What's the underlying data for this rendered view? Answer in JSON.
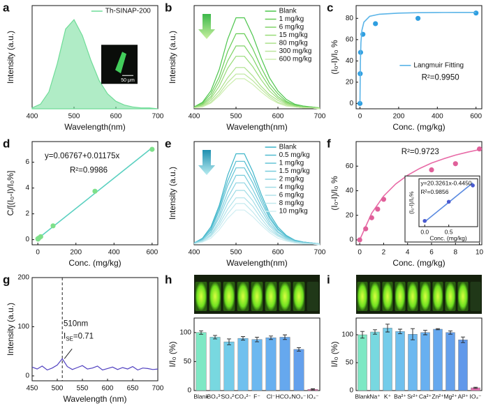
{
  "chart_data": [
    {
      "type": "area",
      "label": "a",
      "xlabel": "Wavelength(nm)",
      "ylabel": "Intensity (a.u.)",
      "xlim": [
        400,
        700
      ],
      "xticks": [
        400,
        500,
        600,
        700
      ],
      "ylim": [
        0,
        1.1
      ],
      "x": [
        400,
        420,
        440,
        460,
        480,
        500,
        520,
        540,
        560,
        580,
        600,
        620,
        640,
        660,
        680,
        700
      ],
      "series": [
        {
          "name": "Th-SINAP-200",
          "color": "#6fdc98",
          "values": [
            0.01,
            0.05,
            0.18,
            0.48,
            0.85,
            0.95,
            0.78,
            0.52,
            0.3,
            0.16,
            0.08,
            0.04,
            0.02,
            0.01,
            0.01,
            0
          ]
        }
      ],
      "legend": "upper right",
      "inset_scale_label": "50 μm"
    },
    {
      "type": "line",
      "label": "b",
      "xlabel": "Wavelength(nm)",
      "ylabel": "Intensity (a.u.)",
      "xlim": [
        400,
        700
      ],
      "xticks": [
        400,
        500,
        600,
        700
      ],
      "ylim": [
        0,
        1.1
      ],
      "x": [
        400,
        420,
        440,
        460,
        480,
        500,
        520,
        540,
        560,
        580,
        600,
        620,
        640,
        660,
        680,
        700
      ],
      "series": [
        {
          "name": "Blank",
          "color": "#4cc54c",
          "values": [
            0.02,
            0.07,
            0.19,
            0.42,
            0.74,
            0.97,
            0.97,
            0.78,
            0.54,
            0.33,
            0.19,
            0.1,
            0.05,
            0.03,
            0.02,
            0.01
          ]
        },
        {
          "name": "1 mg/kg",
          "color": "#66cc55",
          "values": [
            0.02,
            0.06,
            0.16,
            0.34,
            0.61,
            0.8,
            0.8,
            0.64,
            0.44,
            0.27,
            0.16,
            0.08,
            0.04,
            0.02,
            0.02,
            0.01
          ]
        },
        {
          "name": "6 mg/kg",
          "color": "#80d468",
          "values": [
            0.01,
            0.05,
            0.13,
            0.29,
            0.51,
            0.67,
            0.67,
            0.54,
            0.37,
            0.23,
            0.13,
            0.07,
            0.03,
            0.02,
            0.01,
            0.01
          ]
        },
        {
          "name": "15 mg/kg",
          "color": "#98dc78",
          "values": [
            0.01,
            0.04,
            0.11,
            0.24,
            0.43,
            0.56,
            0.56,
            0.45,
            0.31,
            0.19,
            0.11,
            0.06,
            0.03,
            0.02,
            0.01,
            0.01
          ]
        },
        {
          "name": "80 mg/kg",
          "color": "#ace08a",
          "values": [
            0.01,
            0.03,
            0.09,
            0.19,
            0.33,
            0.44,
            0.44,
            0.35,
            0.24,
            0.15,
            0.09,
            0.05,
            0.02,
            0.01,
            0.01,
            0
          ]
        },
        {
          "name": "300 mg/kg",
          "color": "#bce69c",
          "values": [
            0.01,
            0.03,
            0.07,
            0.16,
            0.28,
            0.37,
            0.37,
            0.3,
            0.21,
            0.13,
            0.07,
            0.04,
            0.02,
            0.01,
            0.01,
            0
          ]
        },
        {
          "name": "600 mg/kg",
          "color": "#cdeeb0",
          "values": [
            0.01,
            0.02,
            0.06,
            0.14,
            0.24,
            0.32,
            0.32,
            0.26,
            0.18,
            0.11,
            0.06,
            0.03,
            0.02,
            0.01,
            0.01,
            0
          ]
        }
      ],
      "legend": "upper right"
    },
    {
      "type": "scatter",
      "label": "c",
      "xlabel": "Conc. (mg/kg)",
      "ylabel": "(I₀-I)/I₀ %",
      "xlim": [
        -20,
        630
      ],
      "xticks": [
        0,
        200,
        400,
        600
      ],
      "ylim": [
        -5,
        92
      ],
      "yticks": [
        0,
        20,
        40,
        60,
        80
      ],
      "series": [
        {
          "color": "#2e9ee0",
          "mode": "markers",
          "x": [
            0,
            1,
            3,
            15,
            80,
            300,
            600
          ],
          "values": [
            0,
            28,
            48,
            65,
            75,
            80,
            85
          ]
        },
        {
          "name": "Langmuir Fitting",
          "color": "#5ab4e8",
          "mode": "line",
          "x": [
            0,
            2,
            5,
            10,
            20,
            50,
            100,
            200,
            300,
            400,
            500,
            600
          ],
          "values": [
            0,
            38.2,
            57.3,
            68.8,
            76.4,
            81.9,
            83.9,
            84.9,
            85.3,
            85.5,
            85.6,
            85.6
          ]
        }
      ],
      "legend": "center right",
      "annotations": [
        "R²=0.9950"
      ]
    },
    {
      "type": "scatter",
      "label": "d",
      "xlabel": "Conc. (mg/kg)",
      "ylabel": "C/[(I₀-I)/I₀%]",
      "xlim": [
        -30,
        630
      ],
      "xticks": [
        0,
        200,
        400,
        600
      ],
      "ylim": [
        -0.4,
        7.6
      ],
      "yticks": [
        0,
        2,
        4,
        6
      ],
      "series": [
        {
          "color": "#5ad0c0",
          "mode": "line",
          "x": [
            0,
            600
          ],
          "values": [
            0.07,
            7.12
          ]
        },
        {
          "color": "#7ee08a",
          "mode": "markers",
          "x": [
            0,
            1,
            6,
            15,
            80,
            300,
            600
          ],
          "values": [
            0.07,
            0.04,
            0.13,
            0.23,
            1.07,
            3.75,
            7.0
          ]
        }
      ],
      "annotations": [
        "y=0.06767+0.01175x",
        "R²=0.9986"
      ]
    },
    {
      "type": "line",
      "label": "e",
      "xlabel": "Wavelength(nm)",
      "ylabel": "Intensity (a.u.)",
      "xlim": [
        400,
        700
      ],
      "xticks": [
        400,
        500,
        600,
        700
      ],
      "ylim": [
        0,
        1.1
      ],
      "x": [
        400,
        420,
        440,
        460,
        480,
        500,
        520,
        540,
        560,
        580,
        600,
        620,
        640,
        660,
        680,
        700
      ],
      "series": [
        {
          "name": "Blank",
          "color": "#3cb4c8",
          "values": [
            0.02,
            0.07,
            0.19,
            0.42,
            0.74,
            0.97,
            0.97,
            0.78,
            0.54,
            0.33,
            0.19,
            0.1,
            0.05,
            0.03,
            0.02,
            0.01
          ]
        },
        {
          "name": "0.5 mg/kg",
          "color": "#50bcd0",
          "values": [
            0.02,
            0.06,
            0.17,
            0.39,
            0.68,
            0.89,
            0.89,
            0.72,
            0.5,
            0.3,
            0.17,
            0.09,
            0.05,
            0.03,
            0.02,
            0.01
          ]
        },
        {
          "name": "1 mg/kg",
          "color": "#64c4d6",
          "values": [
            0.02,
            0.06,
            0.16,
            0.36,
            0.63,
            0.82,
            0.82,
            0.66,
            0.46,
            0.28,
            0.16,
            0.09,
            0.04,
            0.03,
            0.02,
            0.01
          ]
        },
        {
          "name": "1.5 mg/kg",
          "color": "#78ccdc",
          "values": [
            0.02,
            0.05,
            0.14,
            0.32,
            0.56,
            0.74,
            0.74,
            0.59,
            0.41,
            0.25,
            0.14,
            0.08,
            0.04,
            0.02,
            0.02,
            0.01
          ]
        },
        {
          "name": "2 mg/kg",
          "color": "#8cd4e2",
          "values": [
            0.01,
            0.05,
            0.13,
            0.29,
            0.5,
            0.66,
            0.66,
            0.53,
            0.37,
            0.22,
            0.13,
            0.07,
            0.03,
            0.02,
            0.01,
            0.01
          ]
        },
        {
          "name": "4 mg/kg",
          "color": "#a0dce6",
          "values": [
            0.01,
            0.04,
            0.11,
            0.25,
            0.44,
            0.58,
            0.58,
            0.47,
            0.32,
            0.2,
            0.11,
            0.06,
            0.03,
            0.02,
            0.01,
            0.01
          ]
        },
        {
          "name": "6 mg/kg",
          "color": "#b0e2ea",
          "values": [
            0.01,
            0.04,
            0.1,
            0.22,
            0.38,
            0.5,
            0.5,
            0.41,
            0.28,
            0.17,
            0.1,
            0.05,
            0.03,
            0.02,
            0.01,
            0.01
          ]
        },
        {
          "name": "8 mg/kg",
          "color": "#c0e8ee",
          "values": [
            0.01,
            0.03,
            0.09,
            0.19,
            0.33,
            0.44,
            0.44,
            0.35,
            0.24,
            0.15,
            0.09,
            0.05,
            0.02,
            0.01,
            0.01,
            0
          ]
        },
        {
          "name": "10 mg/kg",
          "color": "#d0eef2",
          "values": [
            0.01,
            0.03,
            0.07,
            0.16,
            0.28,
            0.37,
            0.37,
            0.3,
            0.21,
            0.13,
            0.07,
            0.04,
            0.02,
            0.01,
            0.01,
            0
          ]
        }
      ],
      "legend": "upper right"
    },
    {
      "type": "scatter",
      "label": "f",
      "xlabel": "Conc. (mg/kg)",
      "ylabel": "(I₀-I)/I₀ %",
      "xlim": [
        -0.3,
        10.2
      ],
      "xticks": [
        0,
        2,
        4,
        6,
        8,
        10
      ],
      "ylim": [
        -4,
        80
      ],
      "yticks": [
        0,
        20,
        40,
        60
      ],
      "series": [
        {
          "color": "#e86aa6",
          "mode": "line",
          "x": [
            0,
            1,
            2,
            3,
            4,
            5,
            6,
            7,
            8,
            9,
            10
          ],
          "values": [
            0,
            21.7,
            35.7,
            45.5,
            52.6,
            58.1,
            62.5,
            66.0,
            69.0,
            71.4,
            73.5
          ]
        },
        {
          "color": "#e0609a",
          "mode": "markers",
          "x": [
            0,
            0.5,
            1,
            1.5,
            2,
            4,
            6,
            8,
            10
          ],
          "values": [
            0,
            9,
            18,
            25,
            33,
            50,
            57,
            62,
            74
          ]
        }
      ],
      "annotations": [
        "R²=0.9723"
      ],
      "inset": {
        "xlabel": "Conc. (mg/kg)",
        "ylabel": "(I₀-I)/I₀%",
        "xlim": [
          -0.12,
          1.1
        ],
        "xticks": [
          {
            "value": 0,
            "label": "0.0"
          },
          0.5
        ],
        "ylim": [
          -3,
          22
        ],
        "series": [
          {
            "color": "#5a8ae0",
            "mode": "line",
            "x": [
              0,
              1
            ],
            "values": [
              -0.45,
              19.88
            ]
          },
          {
            "color": "#4a5ad0",
            "mode": "markers",
            "x": [
              0,
              0.5,
              1
            ],
            "values": [
              0,
              10,
              18.5
            ]
          }
        ],
        "annotations": [
          "y=20.3261x-0.4450",
          "R²=0.9856"
        ]
      }
    },
    {
      "type": "line",
      "label": "g",
      "xlabel": "Wavelength (nm)",
      "ylabel": "Intensity (a.u.)",
      "xlim": [
        450,
        700
      ],
      "xticks": [
        450,
        500,
        550,
        600,
        650,
        700
      ],
      "ylim": [
        -10,
        200
      ],
      "yticks": [
        0,
        100,
        200
      ],
      "x": [
        450,
        460,
        470,
        480,
        490,
        500,
        510,
        520,
        530,
        540,
        550,
        560,
        570,
        580,
        590,
        600,
        610,
        620,
        630,
        640,
        650,
        660,
        670,
        680,
        690,
        700
      ],
      "series": [
        {
          "color": "#5040c0",
          "values": [
            18,
            14,
            20,
            12,
            16,
            22,
            35,
            19,
            13,
            17,
            21,
            14,
            16,
            20,
            12,
            15,
            18,
            13,
            17,
            14,
            19,
            12,
            16,
            15,
            13,
            14
          ]
        }
      ],
      "vline": 510,
      "annotations": [
        "510nm",
        [
          "I",
          "SE",
          "=0.71"
        ]
      ]
    },
    {
      "type": "bar",
      "label": "h",
      "ylabel": "I/I₀ (%)",
      "ylim": [
        0,
        125
      ],
      "yticks": [
        0,
        50,
        100
      ],
      "categories": [
        "Blank",
        "BO₃³⁻",
        "SO₄²⁻",
        "CO₃²⁻",
        "F⁻",
        "Cl⁻",
        "HCO₃⁻",
        "NO₃⁻",
        "IO₃⁻"
      ],
      "values": [
        100,
        92,
        84,
        90,
        88,
        91,
        92,
        71,
        2
      ],
      "errors": [
        3,
        3,
        5,
        3,
        4,
        3,
        4,
        3,
        1
      ],
      "colors": [
        "#7ee8c4",
        "#78d8e0",
        "#74ccea",
        "#70c0ee",
        "#6cb8f0",
        "#68b0f0",
        "#66a8ee",
        "#64a0ec",
        "#e070b0"
      ]
    },
    {
      "type": "bar",
      "label": "i",
      "ylabel": "I/I₀ (%)",
      "ylim": [
        0,
        130
      ],
      "yticks": [
        0,
        50,
        100
      ],
      "categories": [
        "Blank",
        "Na⁺",
        "K⁺",
        "Ba²⁺",
        "Sr²⁺",
        "Ca²⁺",
        "Zn²⁺",
        "Mg²⁺",
        "Al³⁺",
        "IO₃⁻"
      ],
      "values": [
        100,
        105,
        112,
        106,
        101,
        104,
        110,
        104,
        91,
        5
      ],
      "errors": [
        6,
        4,
        7,
        4,
        10,
        4,
        1,
        3,
        5,
        1
      ],
      "colors": [
        "#7ee8c4",
        "#78d8e0",
        "#74ccea",
        "#70c0ee",
        "#6cb8f0",
        "#68b0f0",
        "#66a8ee",
        "#64a0ec",
        "#6098ea",
        "#e070b0"
      ]
    }
  ]
}
